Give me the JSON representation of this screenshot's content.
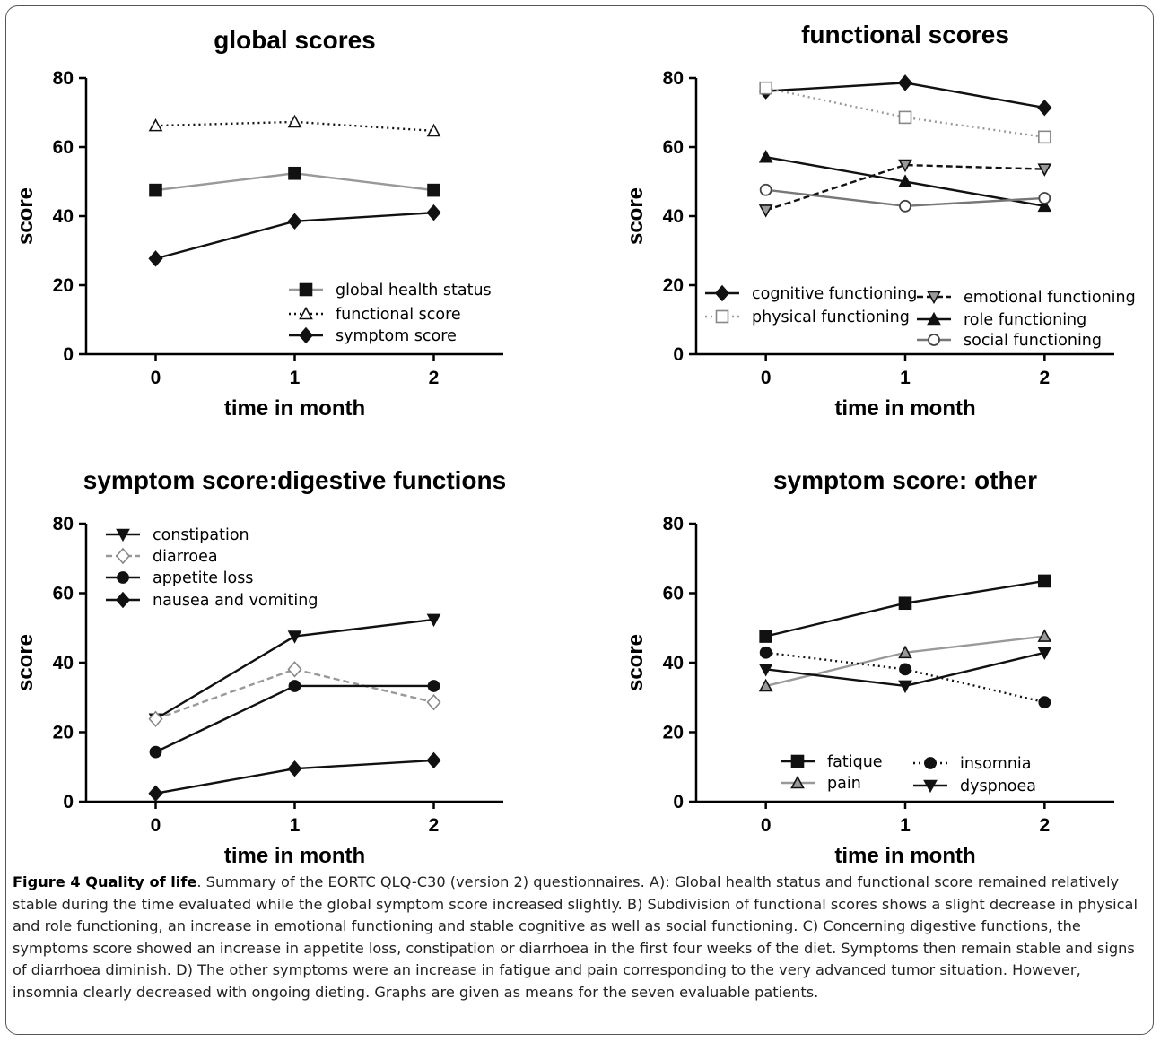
{
  "chart_data": [
    {
      "id": "A",
      "type": "line",
      "title": "global scores",
      "xlabel": "time in month",
      "ylabel": "score",
      "x": [
        0,
        1,
        2
      ],
      "xlim": [
        -0.5,
        2.5
      ],
      "ylim": [
        0,
        80
      ],
      "yticks": [
        0,
        20,
        40,
        60,
        80
      ],
      "legend_position": "bottom-right",
      "series": [
        {
          "name": "global health status",
          "values": [
            47.5,
            52.4,
            47.5
          ],
          "color": "#999999",
          "dash": "solid",
          "marker": "square-filled"
        },
        {
          "name": "functional score",
          "values": [
            66.2,
            67.3,
            64.7
          ],
          "color": "#111111",
          "dash": "dotted",
          "marker": "triangle-open"
        },
        {
          "name": "symptom score",
          "values": [
            27.7,
            38.5,
            41.0
          ],
          "color": "#111111",
          "dash": "solid",
          "marker": "diamond-filled"
        }
      ]
    },
    {
      "id": "B",
      "type": "line",
      "title": "functional scores",
      "xlabel": "time in month",
      "ylabel": "score",
      "x": [
        0,
        1,
        2
      ],
      "xlim": [
        -0.5,
        2.5
      ],
      "ylim": [
        0,
        80
      ],
      "yticks": [
        0,
        20,
        40,
        60,
        80
      ],
      "legend_position": "bottom",
      "series": [
        {
          "name": "cognitive functioning",
          "values": [
            76.2,
            78.6,
            71.4
          ],
          "color": "#111111",
          "dash": "solid",
          "marker": "diamond-filled"
        },
        {
          "name": "physical functioning",
          "values": [
            77.1,
            68.6,
            62.9
          ],
          "color": "#999999",
          "dash": "dotted",
          "marker": "square-open"
        },
        {
          "name": "emotional functioning",
          "values": [
            41.7,
            54.8,
            53.6
          ],
          "color": "#111111",
          "dash": "dashed",
          "marker": "triangle-down-filled-gray"
        },
        {
          "name": "role functioning",
          "values": [
            57.1,
            50.0,
            42.9
          ],
          "color": "#111111",
          "dash": "solid",
          "marker": "triangle-filled"
        },
        {
          "name": "social functioning",
          "values": [
            47.6,
            42.9,
            45.2
          ],
          "color": "#777777",
          "dash": "solid",
          "marker": "circle-open"
        }
      ]
    },
    {
      "id": "C",
      "type": "line",
      "title": "symptom score:digestive functions",
      "xlabel": "time in month",
      "ylabel": "score",
      "x": [
        0,
        1,
        2
      ],
      "xlim": [
        -0.5,
        2.5
      ],
      "ylim": [
        0,
        80
      ],
      "yticks": [
        0,
        20,
        40,
        60,
        80
      ],
      "legend_position": "top-left",
      "series": [
        {
          "name": "constipation",
          "values": [
            23.8,
            47.6,
            52.4
          ],
          "color": "#111111",
          "dash": "solid",
          "marker": "triangle-down-filled"
        },
        {
          "name": "diarroea",
          "values": [
            23.8,
            38.1,
            28.6
          ],
          "color": "#999999",
          "dash": "dashed",
          "marker": "diamond-open"
        },
        {
          "name": "appetite loss",
          "values": [
            14.3,
            33.3,
            33.3
          ],
          "color": "#111111",
          "dash": "solid",
          "marker": "circle-filled"
        },
        {
          "name": "nausea and vomiting",
          "values": [
            2.4,
            9.5,
            11.9
          ],
          "color": "#111111",
          "dash": "solid",
          "marker": "diamond-filled"
        }
      ]
    },
    {
      "id": "D",
      "type": "line",
      "title": "symptom score: other",
      "xlabel": "time in month",
      "ylabel": "score",
      "x": [
        0,
        1,
        2
      ],
      "xlim": [
        -0.5,
        2.5
      ],
      "ylim": [
        0,
        80
      ],
      "yticks": [
        0,
        20,
        40,
        60,
        80
      ],
      "legend_position": "bottom",
      "series": [
        {
          "name": "fatique",
          "values": [
            47.6,
            57.1,
            63.5
          ],
          "color": "#111111",
          "dash": "solid",
          "marker": "square-filled"
        },
        {
          "name": "pain",
          "values": [
            33.3,
            42.9,
            47.6
          ],
          "color": "#999999",
          "dash": "solid",
          "marker": "triangle-filled-gray"
        },
        {
          "name": "insomnia",
          "values": [
            42.9,
            38.1,
            28.6
          ],
          "color": "#111111",
          "dash": "dotted",
          "marker": "circle-filled"
        },
        {
          "name": "dyspnoea",
          "values": [
            38.1,
            33.3,
            42.9
          ],
          "color": "#111111",
          "dash": "solid",
          "marker": "triangle-down-filled"
        }
      ]
    }
  ],
  "caption": {
    "label": "Figure 4 Quality of life",
    "text": ". Summary of the EORTC QLQ-C30 (version 2) questionnaires. A): Global health status and functional score remained relatively stable during the time evaluated while the global symptom score increased slightly. B) Subdivision of functional scores shows a slight decrease in physical and role functioning, an increase in emotional functioning and stable cognitive as well as social functioning. C) Concerning digestive functions, the symptoms score showed an increase in appetite loss, constipation or diarrhoea in the first four weeks of the diet. Symptoms then remain stable and signs of diarrhoea diminish. D) The other symptoms were an increase in fatigue and pain corresponding to the very advanced tumor situation. However, insomnia clearly decreased with ongoing dieting. Graphs are given as means for the seven evaluable patients."
  }
}
